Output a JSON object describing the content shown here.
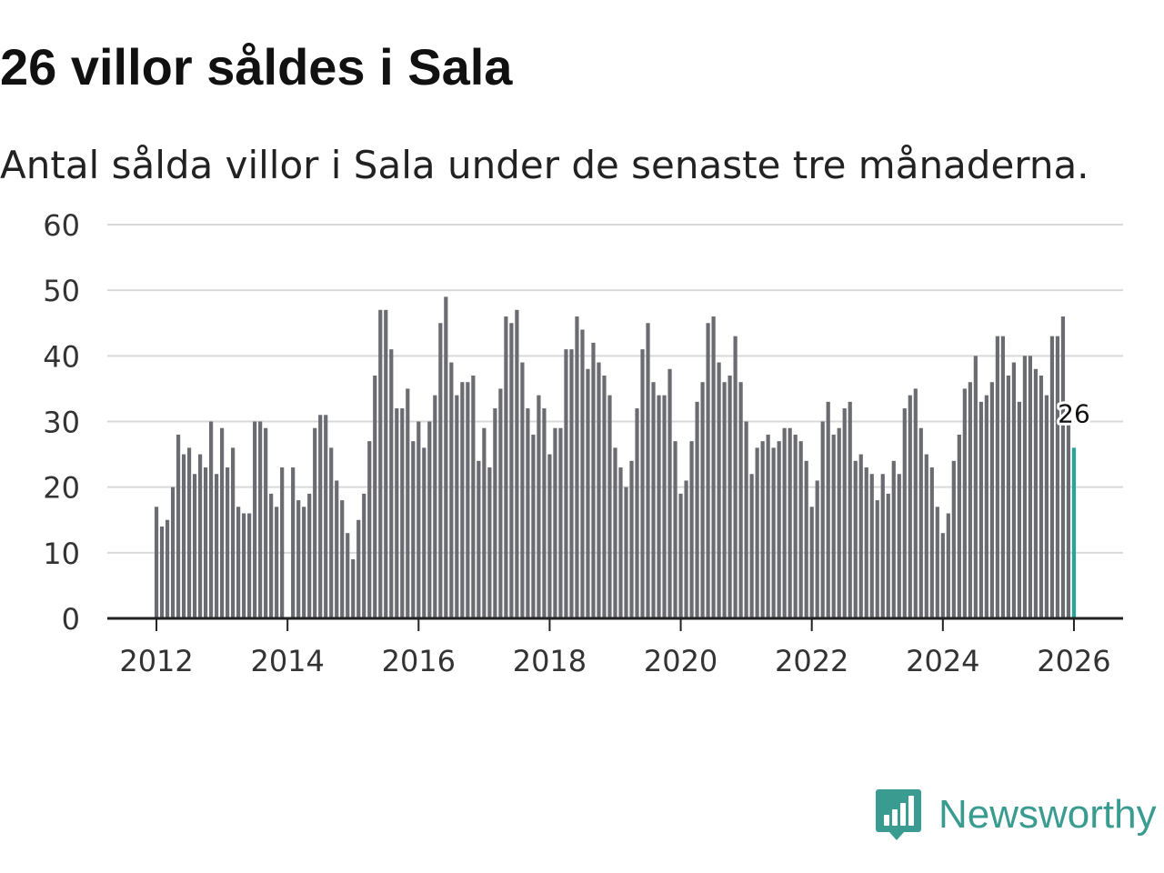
{
  "title": "26 villor såldes i Sala",
  "subtitle": "Antal sålda villor i Sala under de senaste tre månaderna.",
  "brand": {
    "name": "Newsworthy",
    "icon": "newsworthy-logo-icon",
    "color": "#3a9c90"
  },
  "colors": {
    "bar": "#6b6b72",
    "highlight": "#26a69a",
    "grid": "#d9d9d9",
    "axis": "#222222",
    "text": "#333333"
  },
  "chart_data": {
    "type": "bar",
    "title": "26 villor såldes i Sala",
    "xlabel": "",
    "ylabel": "",
    "ylim": [
      0,
      60
    ],
    "yticks": [
      0,
      10,
      20,
      30,
      40,
      50,
      60
    ],
    "xlim": [
      2011.25,
      2026.75
    ],
    "xticks": [
      {
        "value": 2012,
        "label": "2012"
      },
      {
        "value": 2014,
        "label": "2014"
      },
      {
        "value": 2016,
        "label": "2016"
      },
      {
        "value": 2018,
        "label": "2018"
      },
      {
        "value": 2020,
        "label": "2020"
      },
      {
        "value": 2022,
        "label": "2022"
      },
      {
        "value": 2024,
        "label": "2024"
      },
      {
        "value": 2026,
        "label": "2026"
      }
    ],
    "start": {
      "year": 2012,
      "month": 1
    },
    "grid": true,
    "highlight": {
      "index": 168,
      "label": "26"
    },
    "values": [
      17,
      14,
      15,
      20,
      28,
      25,
      26,
      22,
      25,
      23,
      30,
      22,
      29,
      23,
      26,
      17,
      16,
      16,
      30,
      30,
      29,
      19,
      17,
      23,
      0,
      23,
      18,
      17,
      19,
      29,
      31,
      31,
      26,
      21,
      18,
      13,
      9,
      15,
      19,
      27,
      37,
      47,
      47,
      41,
      32,
      32,
      35,
      27,
      30,
      26,
      30,
      34,
      45,
      49,
      39,
      34,
      36,
      36,
      37,
      24,
      29,
      23,
      32,
      35,
      46,
      45,
      47,
      39,
      32,
      28,
      34,
      32,
      25,
      29,
      29,
      41,
      41,
      46,
      44,
      38,
      42,
      39,
      37,
      34,
      26,
      23,
      20,
      24,
      32,
      41,
      45,
      36,
      34,
      34,
      38,
      27,
      19,
      21,
      27,
      33,
      36,
      45,
      46,
      39,
      36,
      37,
      43,
      36,
      30,
      22,
      26,
      27,
      28,
      26,
      27,
      29,
      29,
      28,
      27,
      24,
      17,
      21,
      30,
      33,
      28,
      29,
      32,
      33,
      24,
      25,
      23,
      22,
      18,
      22,
      19,
      24,
      22,
      32,
      34,
      35,
      29,
      25,
      23,
      17,
      13,
      16,
      24,
      28,
      35,
      36,
      40,
      33,
      34,
      36,
      43,
      43,
      37,
      39,
      33,
      40,
      40,
      38,
      37,
      34,
      43,
      43,
      46,
      30,
      26
    ]
  }
}
